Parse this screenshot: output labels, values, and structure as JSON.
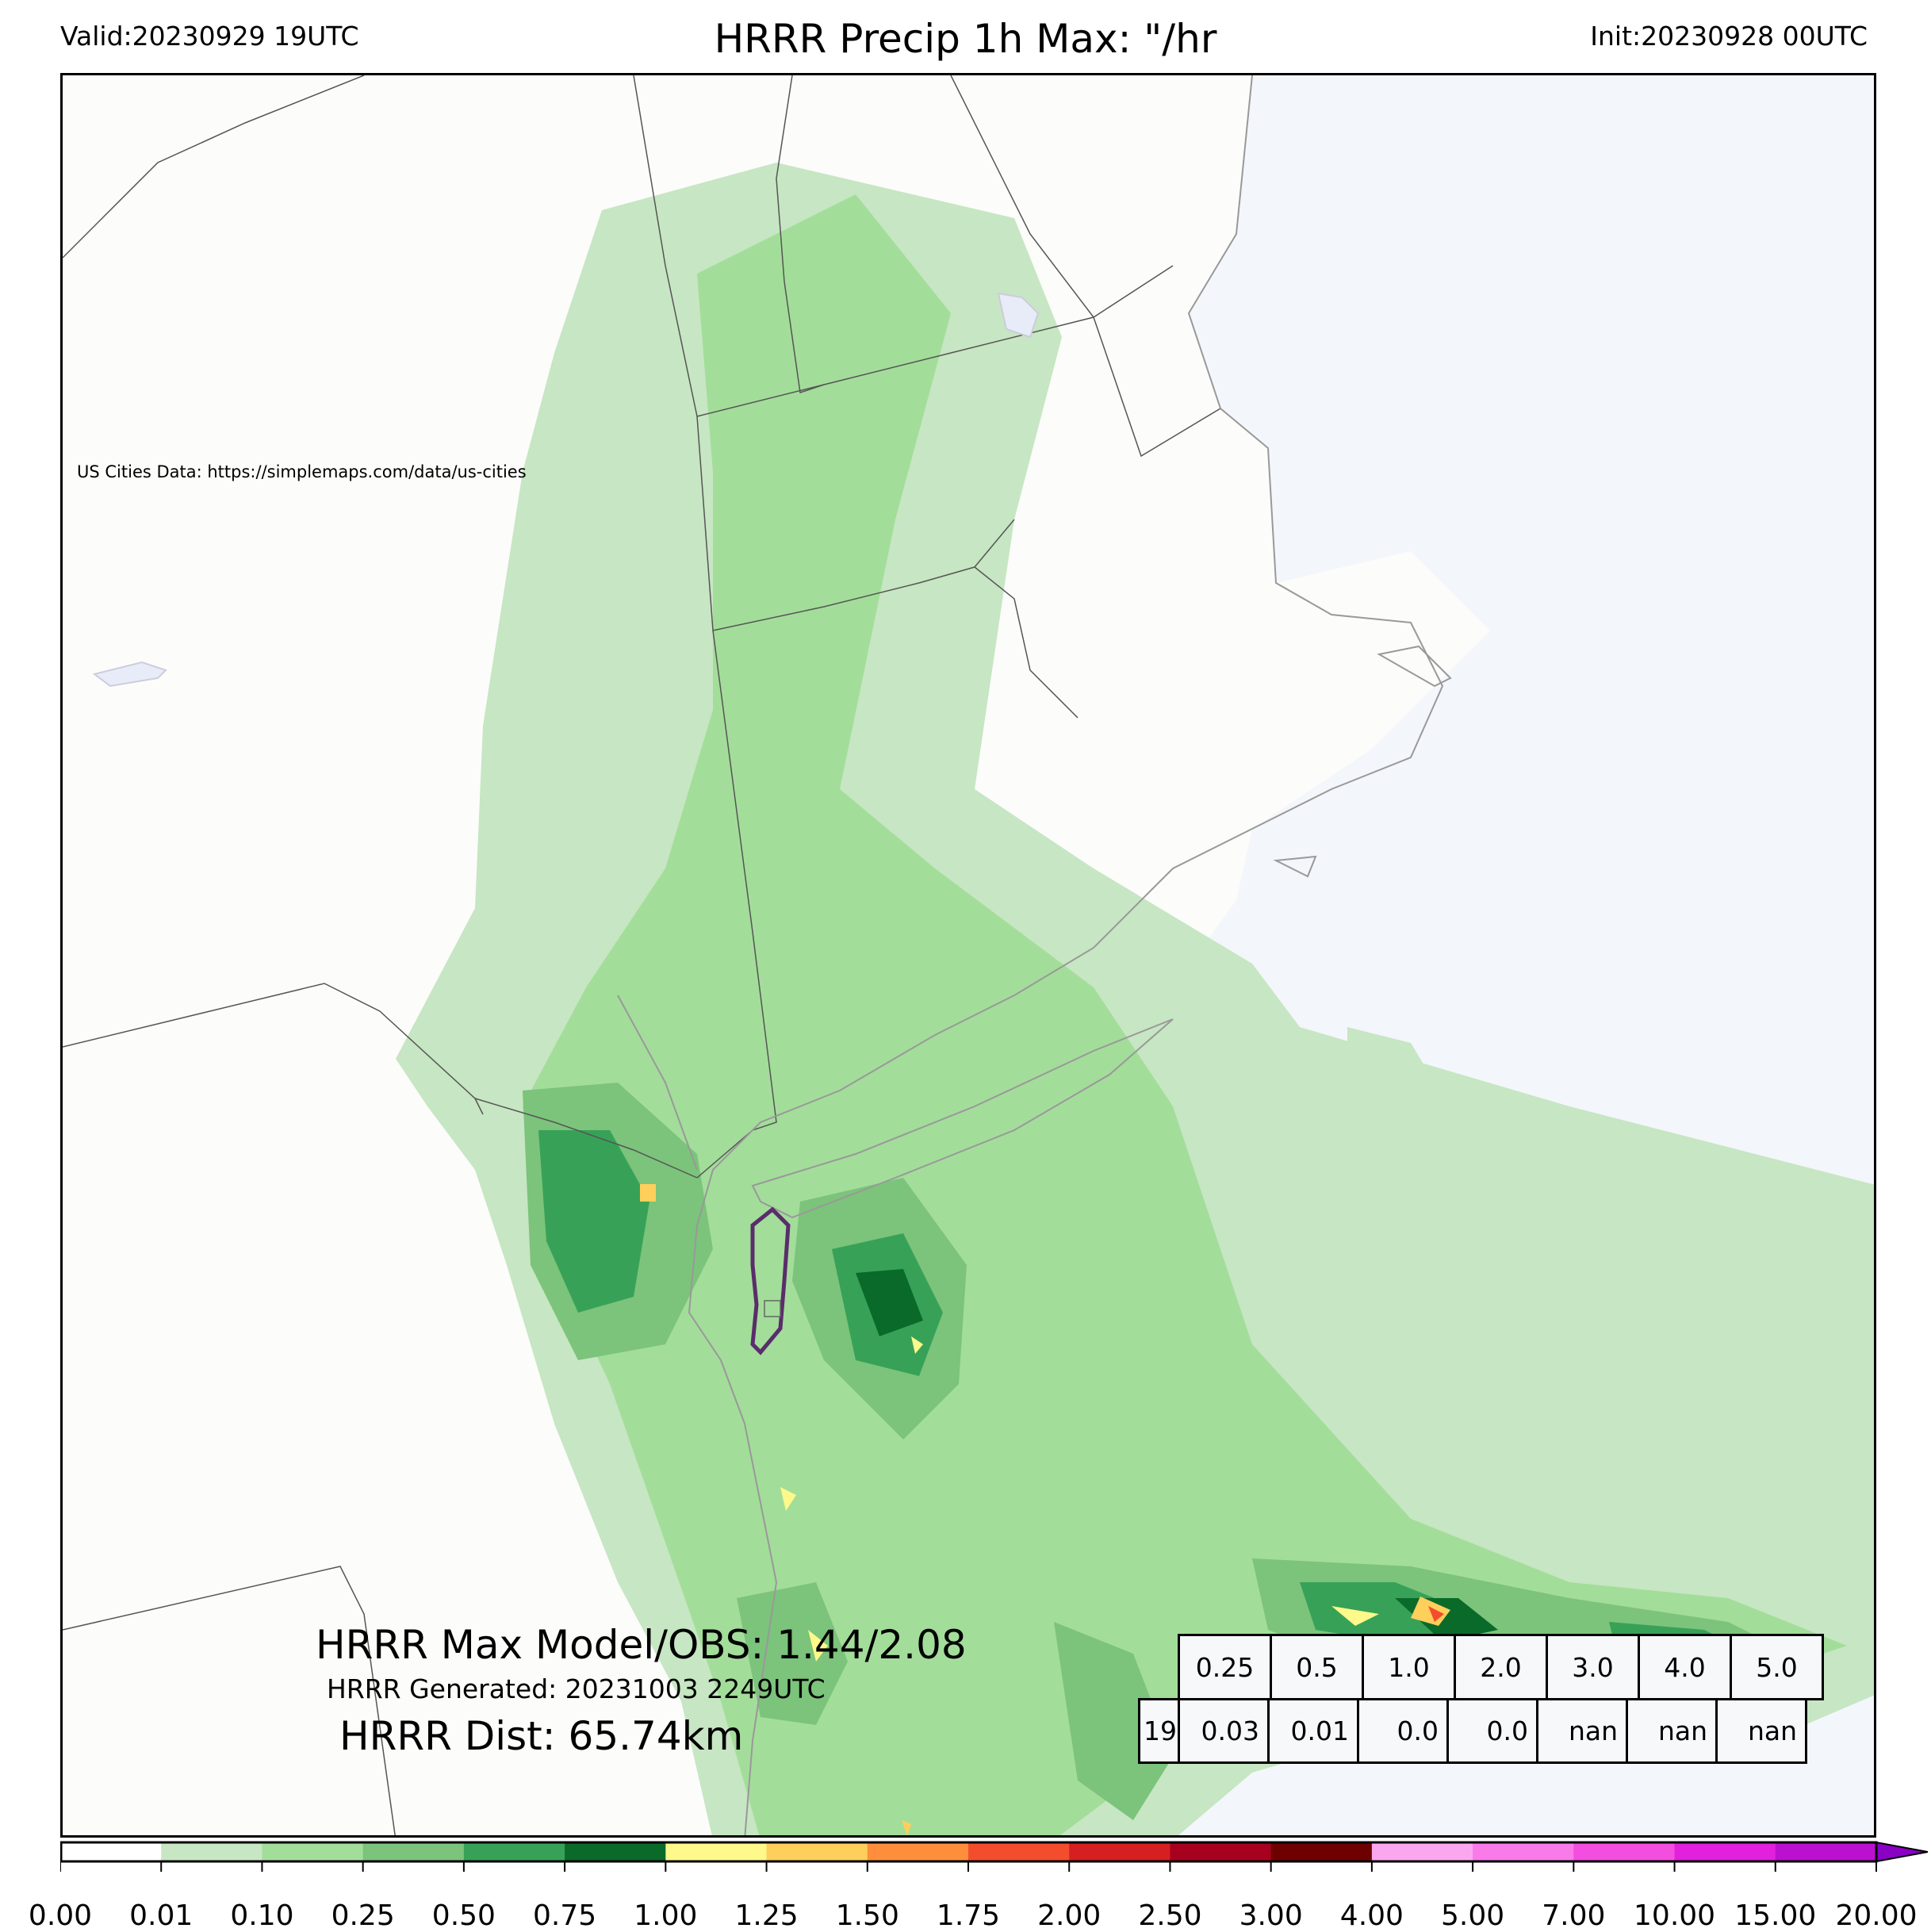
{
  "header": {
    "valid": "Valid:20230929 19UTC",
    "title": "HRRR Precip 1h Max: \"/hr",
    "init": "Init:20230928 00UTC"
  },
  "map": {
    "attribution": "US Cities Data: https://simplemaps.com/data/us-cities",
    "land_color": "#fcfcfb",
    "ocean_color": "#f3f6fb"
  },
  "stats": {
    "max_line": "HRRR Max Model/OBS: 1.44/2.08",
    "generated_line": "HRRR Generated: 20231003 2249UTC",
    "dist_line": "HRRR Dist: 65.74km"
  },
  "threshold_table": {
    "headers": [
      "0.25",
      "0.5",
      "1.0",
      "2.0",
      "3.0",
      "4.0",
      "5.0"
    ],
    "row_label": "19",
    "values": [
      "0.03",
      "0.01",
      "0.0",
      "0.0",
      "nan",
      "nan",
      "nan"
    ]
  },
  "colorbar": {
    "ticks": [
      "0.00",
      "0.01",
      "0.10",
      "0.25",
      "0.50",
      "0.75",
      "1.00",
      "1.25",
      "1.50",
      "1.75",
      "2.00",
      "2.50",
      "3.00",
      "4.00",
      "5.00",
      "7.00",
      "10.00",
      "15.00",
      "20.00"
    ],
    "colors": [
      "#ffffff",
      "#c7e6c3",
      "#a3dd9a",
      "#7cc37b",
      "#37a257",
      "#0a6a2a",
      "#fff88a",
      "#fecf5b",
      "#fe8e3c",
      "#f44d2e",
      "#d61f21",
      "#a8001f",
      "#6e0000",
      "#fba7f0",
      "#f97ae9",
      "#f34ee0",
      "#e220dd",
      "#bb10cf",
      "#8a00c5"
    ]
  }
}
